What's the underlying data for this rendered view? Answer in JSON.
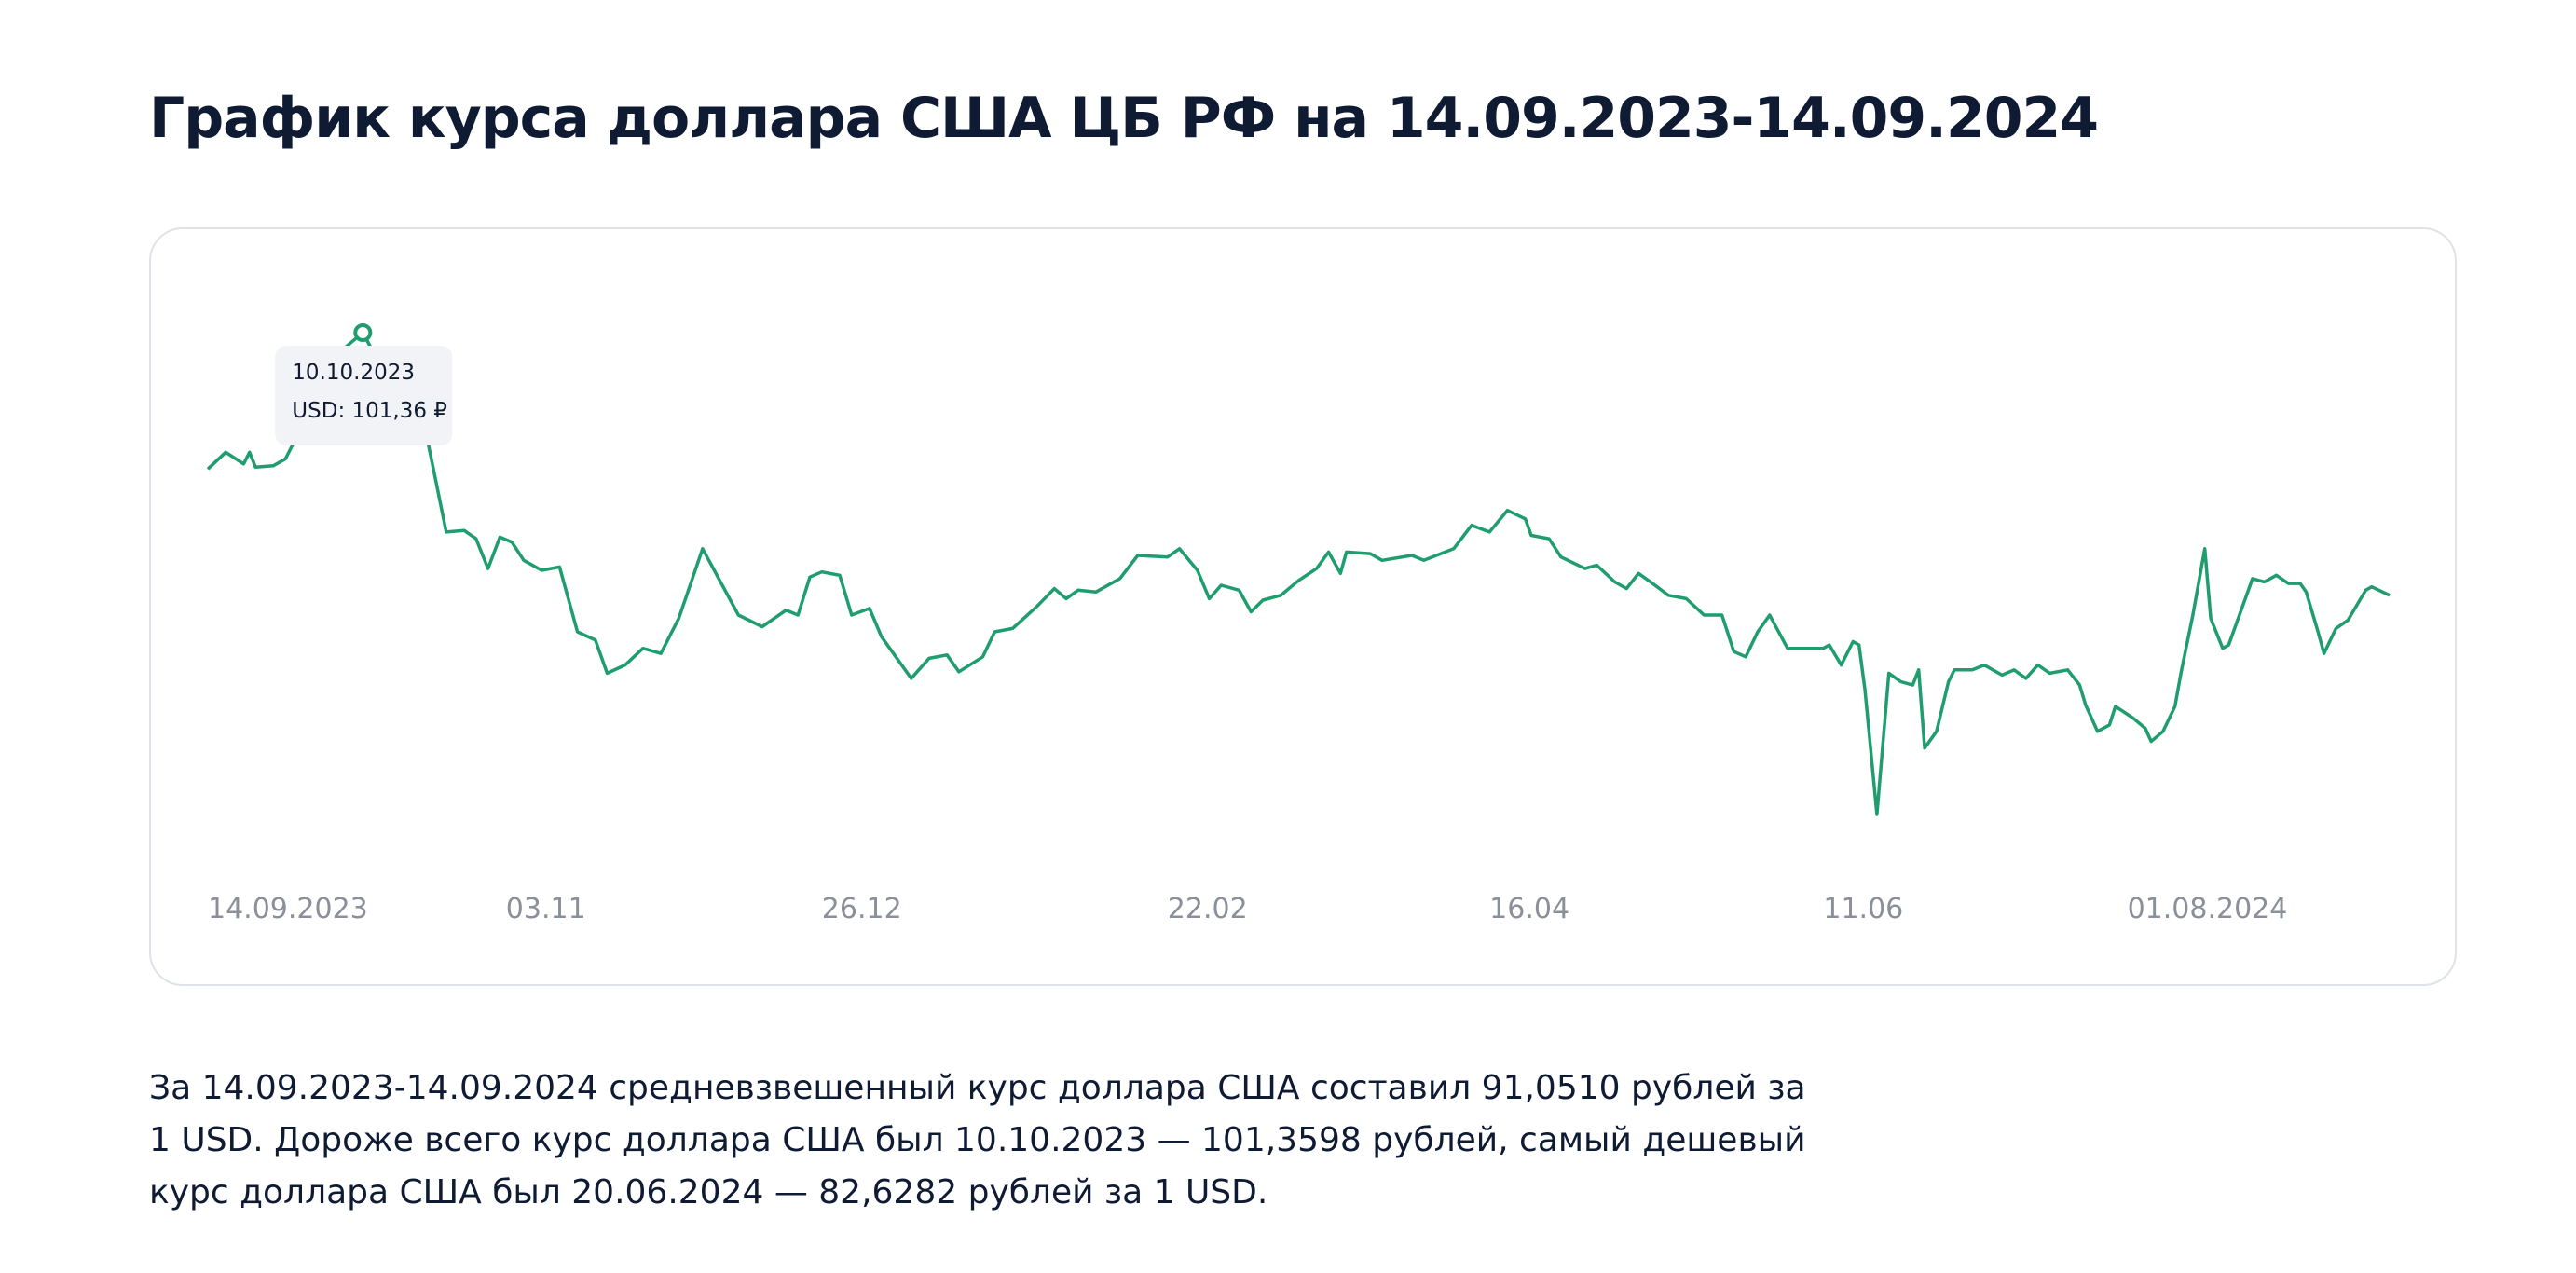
{
  "chart_data": {
    "type": "line",
    "title": "График курса доллара США ЦБ РФ на 14.09.2023-14.09.2024",
    "description": "За 14.09.2023-14.09.2024 средневзвешенный курс доллара США составил 91,0510 рублей за 1 USD. Дороже всего курс доллара США был 10.10.2023 — 101,3598 рублей, самый дешевый курс доллара США был 20.06.2024 — 82,6282 рублей за 1 USD.",
    "color": "#1f9d6f",
    "xlim": [
      "14.09.2023",
      "14.09.2024"
    ],
    "xticks": [
      "14.09.2023",
      {
        "value": "03.11.2023",
        "label": "03.11"
      },
      {
        "value": "26.12.2023",
        "label": "26.12"
      },
      {
        "value": "22.02.2024",
        "label": "22.02"
      },
      {
        "value": "16.04.2024",
        "label": "16.04"
      },
      {
        "value": "11.06.2024",
        "label": "11.06"
      },
      "01.08.2024"
    ],
    "tooltip": {
      "x": "10.10.2023",
      "label": "USD: 101,36 ₽"
    },
    "x": [
      "14.09.2023",
      "17.09.2023",
      "20.09.2023",
      "21.09.2023",
      "22.09.2023",
      "25.09.2023",
      "27.09.2023",
      "29.09.2023",
      "02.10.2023",
      "06.10.2023",
      "10.10.2023",
      "13.10.2023",
      "17.10.2023",
      "20.10.2023",
      "22.10.2023",
      "24.10.2023",
      "27.10.2023",
      "29.10.2023",
      "31.10.2023",
      "02.11.2023",
      "04.11.2023",
      "06.11.2023",
      "09.11.2023",
      "12.11.2023",
      "15.11.2023",
      "18.11.2023",
      "20.11.2023",
      "23.11.2023",
      "26.11.2023",
      "29.11.2023",
      "02.12.2023",
      "06.12.2023",
      "09.12.2023",
      "12.12.2023",
      "16.12.2023",
      "20.12.2023",
      "22.12.2023",
      "24.12.2023",
      "26.12.2023",
      "29.12.2023",
      "31.12.2023",
      "03.01.2024",
      "05.01.2024",
      "10.01.2024",
      "13.01.2024",
      "16.01.2024",
      "18.01.2024",
      "22.01.2024",
      "24.01.2024",
      "27.01.2024",
      "31.01.2024",
      "03.02.2024",
      "05.02.2024",
      "07.02.2024",
      "10.02.2024",
      "14.02.2024",
      "17.02.2024",
      "22.02.2024",
      "24.02.2024",
      "27.02.2024",
      "29.02.2024",
      "02.03.2024",
      "05.03.2024",
      "07.03.2024",
      "09.03.2024",
      "12.03.2024",
      "15.03.2024",
      "18.03.2024",
      "20.03.2024",
      "22.03.2024",
      "23.03.2024",
      "27.03.2024",
      "29.03.2024",
      "03.04.2024",
      "05.04.2024",
      "10.04.2024",
      "13.04.2024",
      "16.04.2024",
      "19.04.2024",
      "22.04.2024",
      "23.04.2024",
      "26.04.2024",
      "28.04.2024",
      "02.05.2024",
      "04.05.2024",
      "07.05.2024",
      "09.05.2024",
      "11.05.2024",
      "13.05.2024",
      "16.05.2024",
      "19.05.2024",
      "22.05.2024",
      "25.05.2024",
      "27.05.2024",
      "29.05.2024",
      "31.05.2024",
      "02.06.2024",
      "05.06.2024",
      "09.06.2024",
      "11.06.2024",
      "12.06.2024",
      "14.06.2024",
      "16.06.2024",
      "17.06.2024",
      "18.06.2024",
      "20.06.2024",
      "22.06.2024",
      "24.06.2024",
      "26.06.2024",
      "27.06.2024",
      "28.06.2024",
      "30.06.2024",
      "02.07.2024",
      "03.07.2024",
      "06.07.2024",
      "08.07.2024",
      "11.07.2024",
      "13.07.2024",
      "15.07.2024",
      "17.07.2024",
      "19.07.2024",
      "22.07.2024",
      "24.07.2024",
      "25.07.2024",
      "27.07.2024",
      "29.07.2024",
      "30.07.2024",
      "02.08.2024",
      "04.08.2024",
      "05.08.2024",
      "07.08.2024",
      "09.08.2024",
      "10.08.2024",
      "12.08.2024",
      "14.08.2024",
      "15.08.2024",
      "17.08.2024",
      "18.08.2024",
      "21.08.2024",
      "22.08.2024",
      "24.08.2024",
      "26.08.2024",
      "28.08.2024",
      "30.08.2024",
      "31.08.2024",
      "02.09.2024",
      "03.09.2024",
      "05.09.2024",
      "07.09.2024",
      "10.09.2024",
      "11.09.2024",
      "14.09.2024"
    ],
    "values": [
      96.06,
      96.71,
      96.26,
      96.71,
      96.13,
      96.19,
      96.45,
      97.35,
      98.78,
      100.58,
      101.3598,
      100.07,
      98.78,
      98.13,
      95.87,
      93.61,
      93.67,
      93.35,
      92.19,
      93.41,
      93.22,
      92.51,
      92.12,
      92.25,
      89.73,
      89.41,
      88.12,
      88.44,
      89.09,
      88.89,
      90.25,
      92.96,
      91.67,
      90.38,
      89.93,
      90.57,
      90.38,
      91.86,
      92.06,
      91.93,
      90.38,
      90.64,
      89.54,
      87.92,
      88.7,
      88.83,
      88.18,
      88.76,
      89.73,
      89.86,
      90.7,
      91.41,
      91.02,
      91.35,
      91.28,
      91.8,
      92.7,
      92.64,
      92.96,
      92.12,
      91.02,
      91.54,
      91.35,
      90.51,
      90.96,
      91.15,
      91.73,
      92.19,
      92.83,
      92.0,
      92.83,
      92.77,
      92.51,
      92.7,
      92.51,
      92.96,
      93.87,
      93.61,
      94.45,
      94.12,
      93.48,
      93.35,
      92.64,
      92.19,
      92.32,
      91.67,
      91.41,
      92.0,
      91.67,
      91.15,
      91.02,
      90.38,
      90.38,
      88.96,
      88.76,
      89.73,
      90.38,
      89.09,
      89.09,
      89.09,
      89.22,
      88.44,
      89.35,
      89.22,
      87.47,
      82.6282,
      88.12,
      87.79,
      87.66,
      88.25,
      85.21,
      85.86,
      87.79,
      88.25,
      88.25,
      88.44,
      88.05,
      88.25,
      87.92,
      88.44,
      88.12,
      88.25,
      87.66,
      86.89,
      85.86,
      86.11,
      86.83,
      86.37,
      85.98,
      85.47,
      85.86,
      86.83,
      88.12,
      90.38,
      92.96,
      90.25,
      89.09,
      89.22,
      91.15,
      91.8,
      91.67,
      91.93,
      91.61,
      91.61,
      91.28,
      89.73,
      88.89,
      89.86,
      90.18,
      91.35,
      91.48,
      91.15
    ]
  }
}
